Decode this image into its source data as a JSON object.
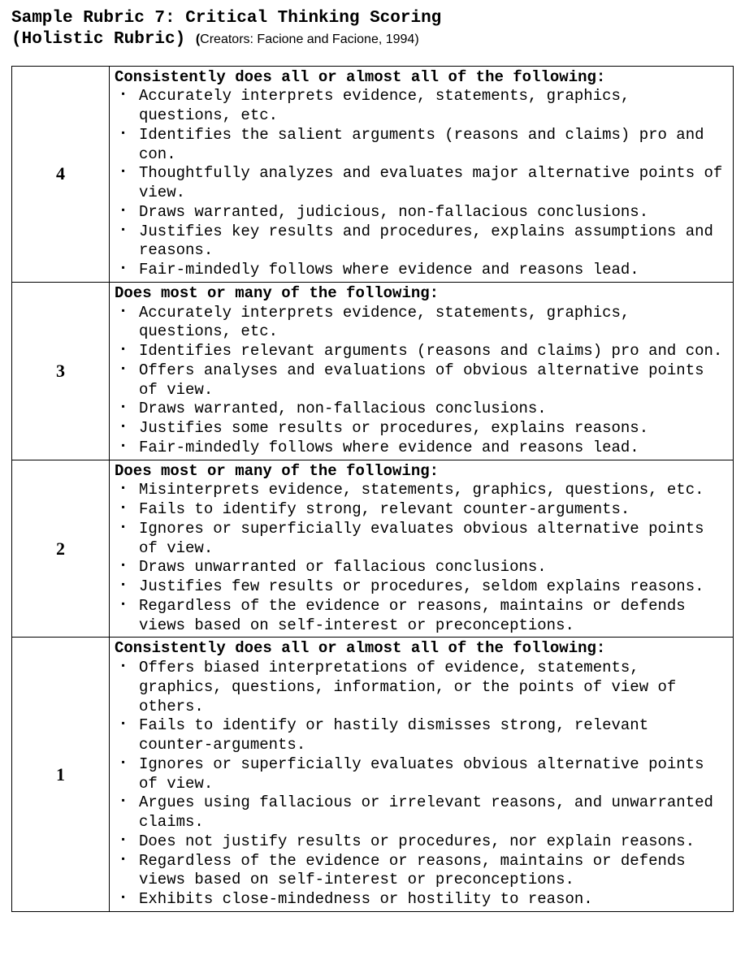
{
  "title_line1": "Sample Rubric 7:  Critical Thinking Scoring",
  "title_line2_bold": " (Holistic Rubric)  ",
  "creators_text": "Creators: Facione and Facione, 1994)",
  "creators_paren": "(",
  "rows": [
    {
      "score": "4",
      "header": "Consistently does all or almost all of the following:",
      "items": [
        "Accurately interprets evidence, statements, graphics, questions, etc.",
        "Identifies the salient arguments (reasons and claims) pro and con.",
        "Thoughtfully analyzes and evaluates major alternative points of view.",
        "Draws warranted, judicious, non-fallacious conclusions.",
        "Justifies key results and procedures, explains assumptions and reasons.",
        "Fair-mindedly follows where evidence and reasons lead."
      ]
    },
    {
      "score": "3",
      "header": "Does most or many of the following:",
      "items": [
        "Accurately interprets evidence, statements, graphics, questions, etc.",
        "Identifies relevant arguments (reasons and claims) pro and con.",
        "Offers analyses and evaluations of obvious alternative points of view.",
        "Draws warranted, non-fallacious conclusions.",
        "Justifies some results or procedures, explains reasons.",
        "Fair-mindedly follows where evidence and reasons lead."
      ]
    },
    {
      "score": "2",
      "header": "Does most or many of the following:",
      "items": [
        "Misinterprets evidence, statements, graphics, questions, etc.",
        "Fails to identify strong, relevant counter-arguments.",
        "Ignores or superficially evaluates obvious alternative points of view.",
        "Draws unwarranted or fallacious conclusions.",
        "Justifies few results or procedures, seldom explains reasons.",
        "Regardless of the evidence or reasons, maintains or defends views based on self-interest or preconceptions."
      ]
    },
    {
      "score": "1",
      "header": "Consistently does all or almost all of the following:",
      "items": [
        "Offers biased interpretations of evidence, statements, graphics, questions, information, or the points of view of others.",
        "Fails to identify or hastily dismisses strong, relevant counter-arguments.",
        "Ignores or superficially evaluates obvious alternative points of view.",
        "Argues using fallacious or irrelevant reasons, and unwarranted claims.",
        "Does not justify results or procedures, nor explain reasons.",
        "Regardless of the evidence or reasons, maintains or defends views based on self-interest or preconceptions.",
        "Exhibits close-mindedness or hostility to reason."
      ]
    }
  ]
}
